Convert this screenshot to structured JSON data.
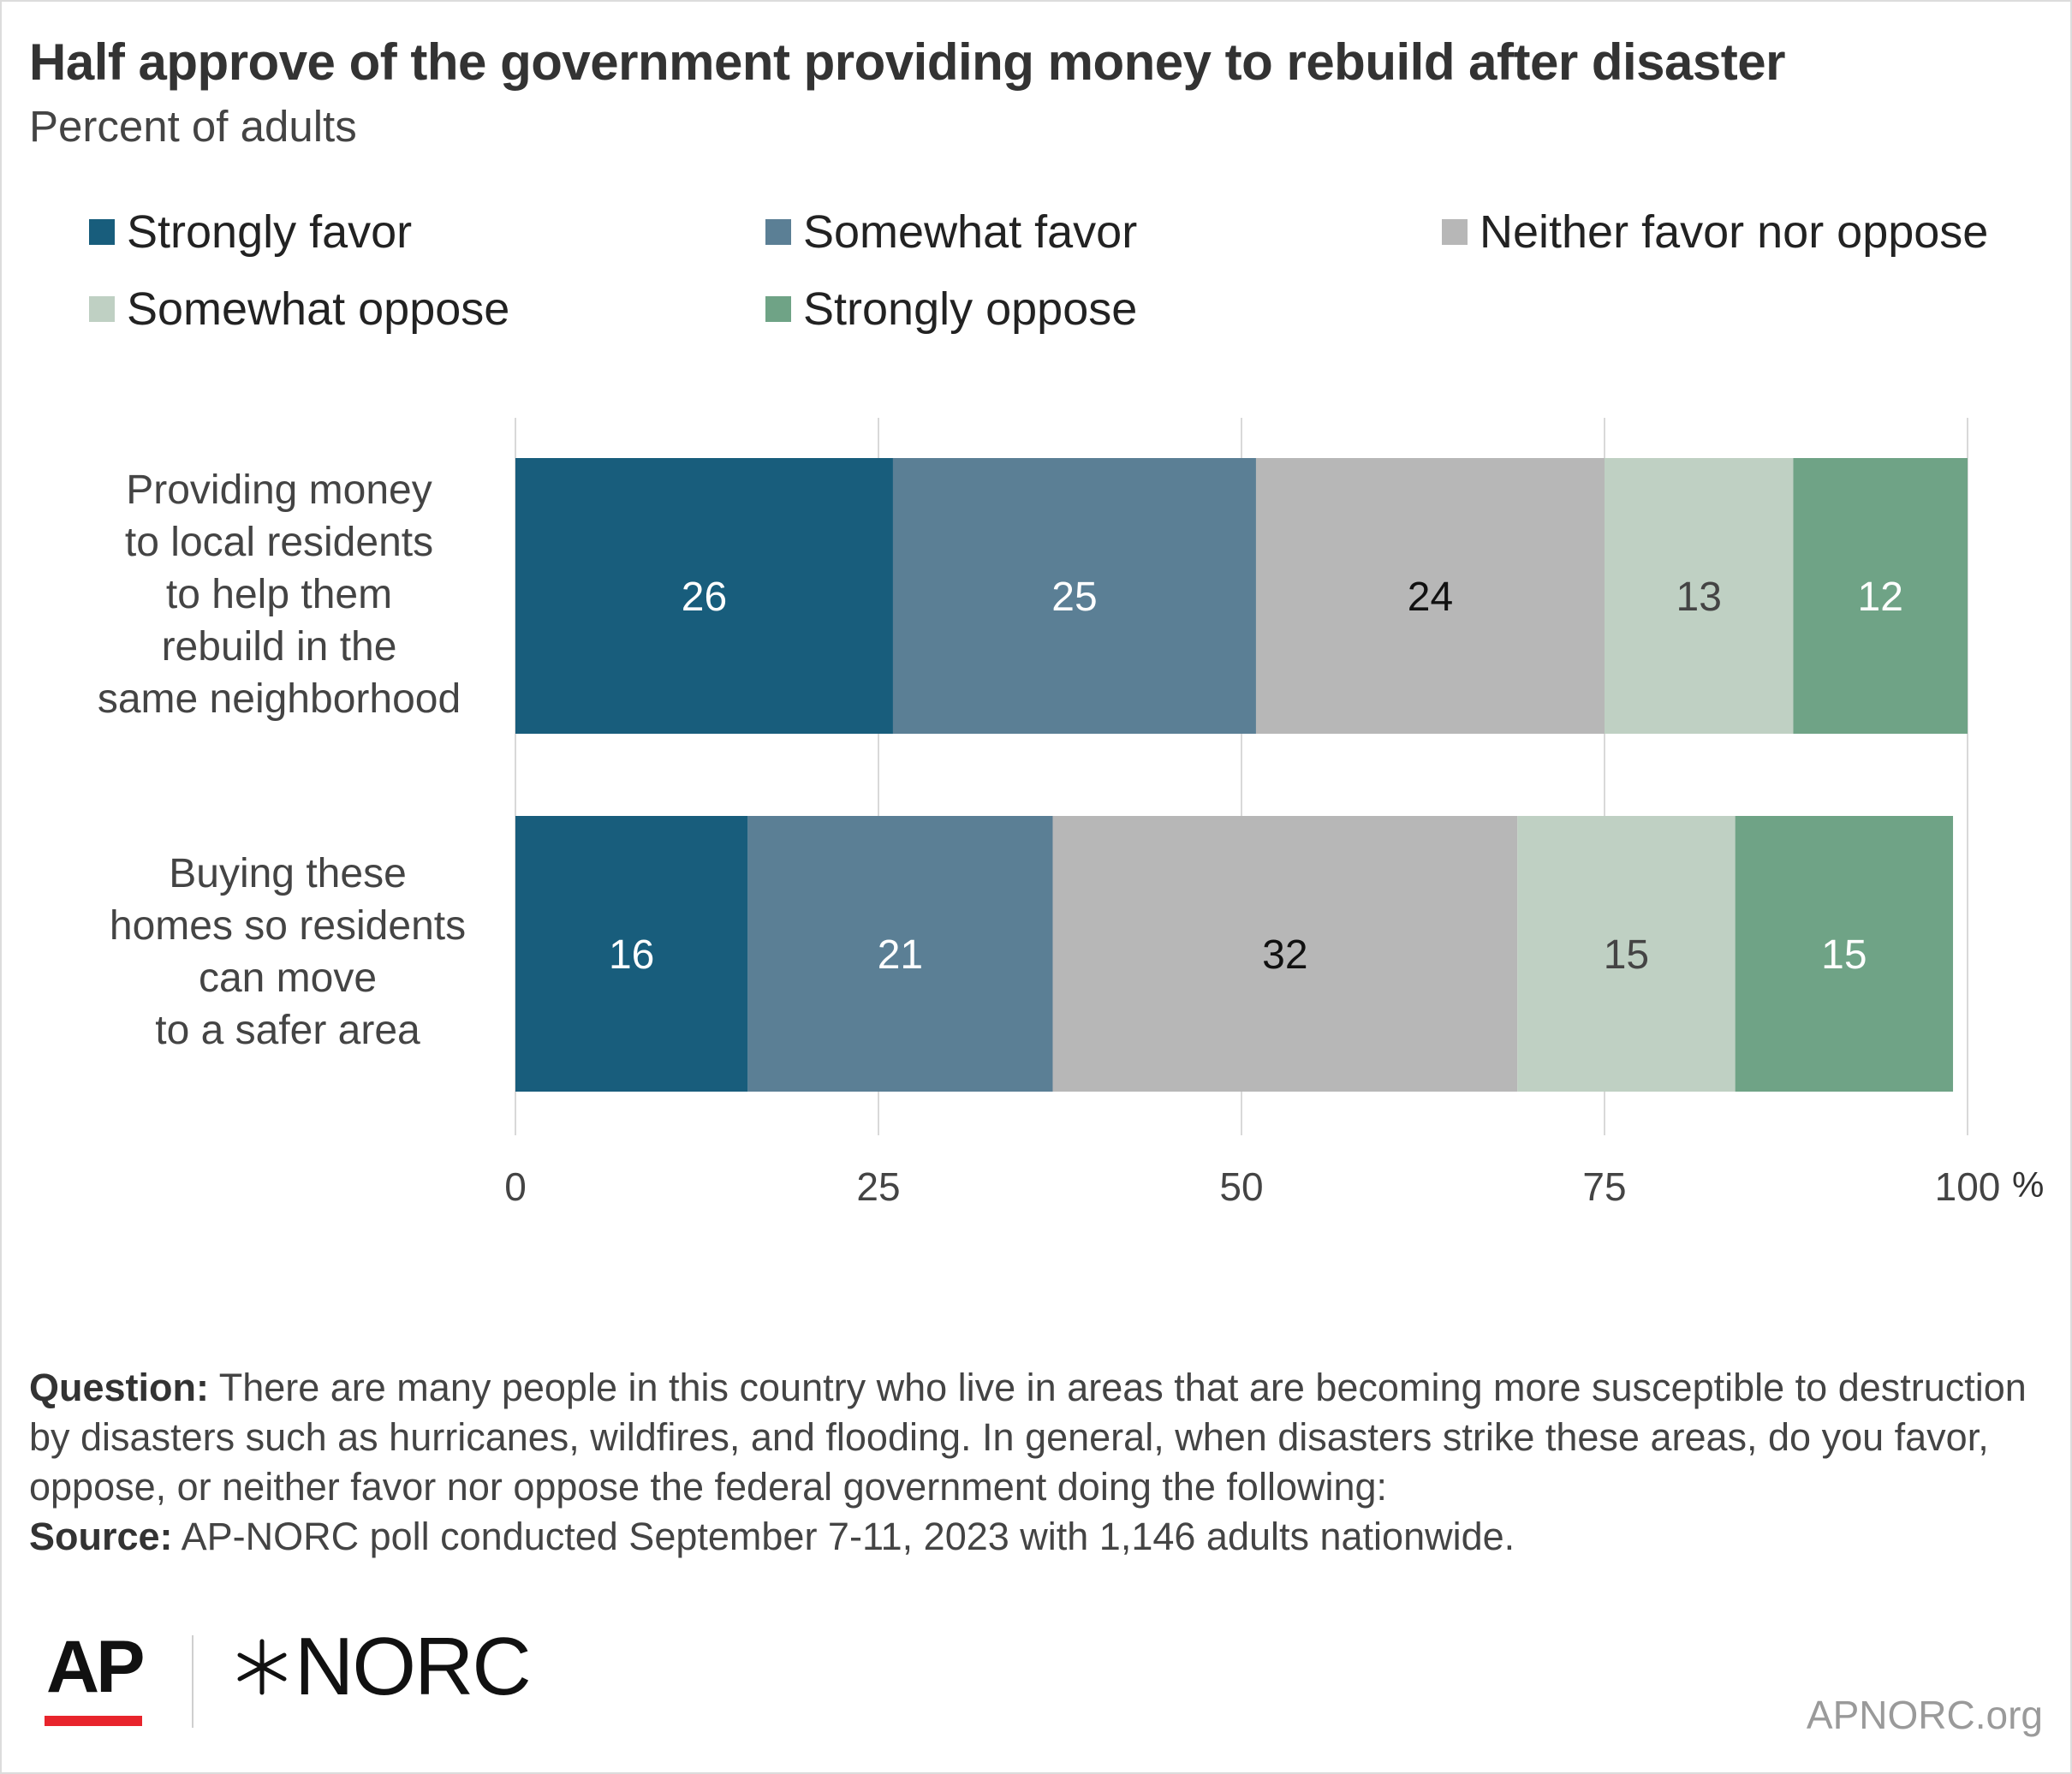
{
  "title": "Half approve of the government providing money to rebuild after disaster",
  "subtitle": "Percent of adults",
  "legend": [
    {
      "label": "Strongly favor",
      "color": "#185d7c"
    },
    {
      "label": "Somewhat favor",
      "color": "#5b7f95"
    },
    {
      "label": "Neither favor nor oppose",
      "color": "#b7b7b7"
    },
    {
      "label": "Somewhat oppose",
      "color": "#bfd0c3"
    },
    {
      "label": "Strongly oppose",
      "color": "#6fa386"
    }
  ],
  "chart_data": {
    "type": "bar",
    "orientation": "horizontal",
    "stacked": true,
    "categories": [
      "Providing money\nto local residents\nto help them\nrebuild in the\nsame neighborhood",
      "Buying these\nhomes so residents\ncan move\nto a safer area"
    ],
    "series": [
      {
        "name": "Strongly favor",
        "values": [
          26,
          16
        ],
        "color": "#185d7c",
        "label_color": "#ffffff"
      },
      {
        "name": "Somewhat favor",
        "values": [
          25,
          21
        ],
        "color": "#5b7f95",
        "label_color": "#ffffff"
      },
      {
        "name": "Neither favor nor oppose",
        "values": [
          24,
          32
        ],
        "color": "#b7b7b7",
        "label_color": "#111111"
      },
      {
        "name": "Somewhat oppose",
        "values": [
          13,
          15
        ],
        "color": "#bfd0c3",
        "label_color": "#444444"
      },
      {
        "name": "Strongly oppose",
        "values": [
          12,
          15
        ],
        "color": "#6fa386",
        "label_color": "#ffffff"
      }
    ],
    "xlim": [
      0,
      100
    ],
    "xticks": [
      "0",
      "25",
      "50",
      "75",
      "100"
    ],
    "xunit": "%",
    "grid": true,
    "legend_position": "top"
  },
  "footer": {
    "question_label": "Question:",
    "question_text": "There are many people in this country who live in areas that are becoming more susceptible to destruction by disasters such as hurricanes, wildfires, and flooding. In general, when disasters strike these areas, do you favor, oppose, or neither favor nor oppose the federal government doing the following:",
    "source_label": "Source:",
    "source_text": "AP-NORC poll conducted September 7-11, 2023 with 1,146 adults nationwide."
  },
  "logos": {
    "ap": "AP",
    "norc": "NORC"
  },
  "site_url": "APNORC.org"
}
